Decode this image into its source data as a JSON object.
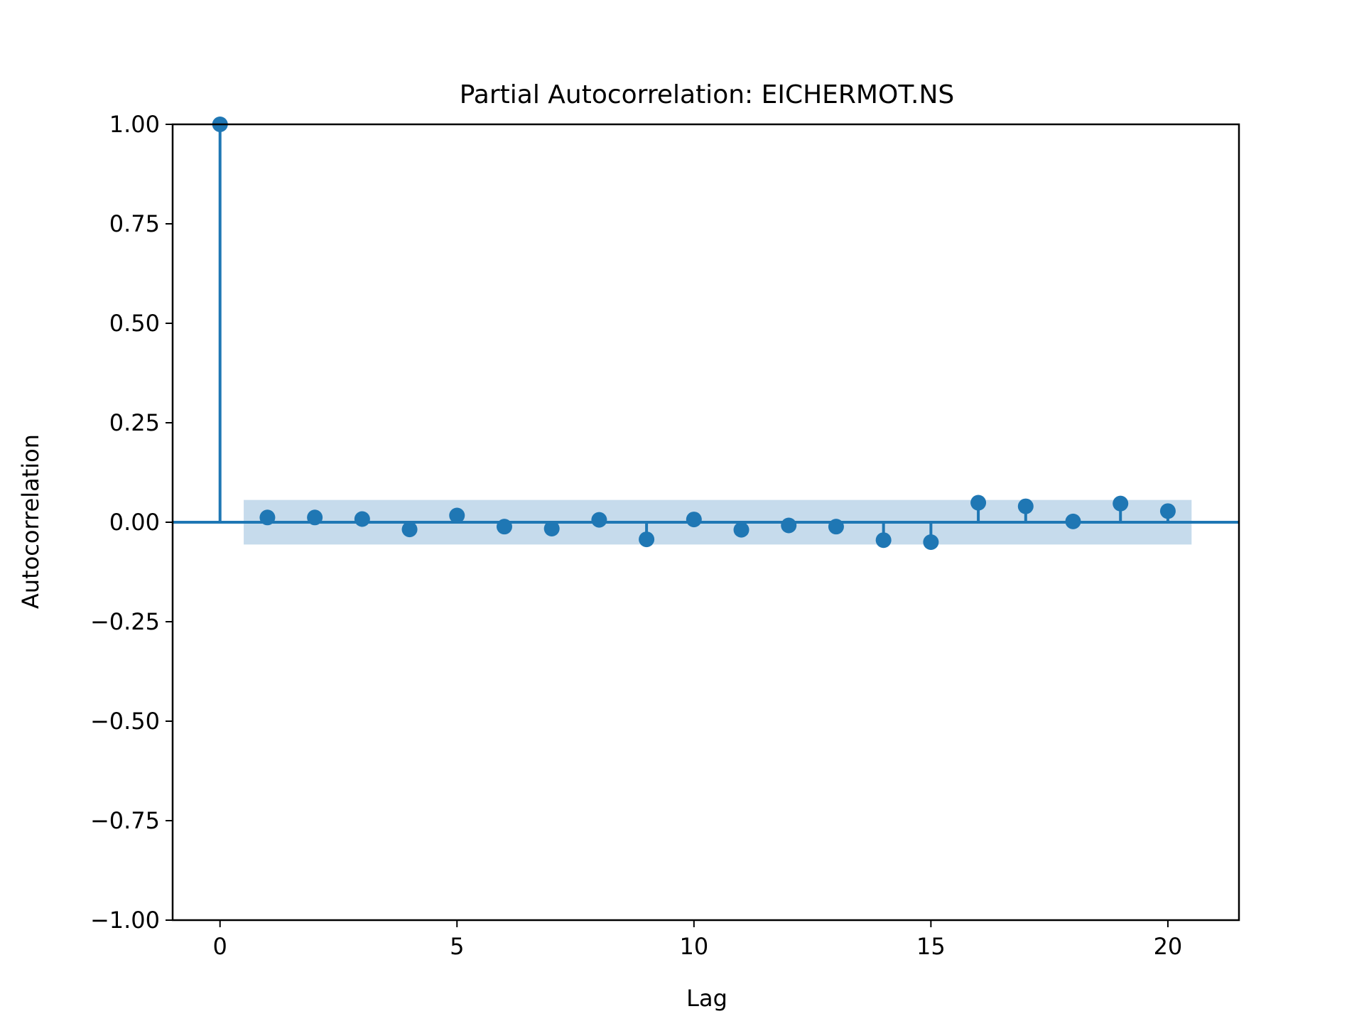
{
  "chart_data": {
    "type": "scatter",
    "subtype": "stem",
    "title": "Partial Autocorrelation: EICHERMOT.NS",
    "xlabel": "Lag",
    "ylabel": "Autocorrelation",
    "xlim": [
      -1,
      21.5
    ],
    "ylim": [
      -1.0,
      1.0
    ],
    "xticks": [
      0,
      5,
      10,
      15,
      20
    ],
    "xtick_labels": [
      "0",
      "5",
      "10",
      "15",
      "20"
    ],
    "yticks": [
      1.0,
      0.75,
      0.5,
      0.25,
      0.0,
      -0.25,
      -0.5,
      -0.75,
      -1.0
    ],
    "ytick_labels": [
      "1.00",
      "0.75",
      "0.50",
      "0.25",
      "0.00",
      "−0.25",
      "−0.50",
      "−0.75",
      "−1.00"
    ],
    "grid": false,
    "series": [
      {
        "x": [
          0,
          1,
          2,
          3,
          4,
          5,
          6,
          7,
          8,
          9,
          10,
          11,
          12,
          13,
          14,
          15,
          16,
          17,
          18,
          19,
          20
        ],
        "values": [
          1.0,
          0.012,
          0.012,
          0.008,
          -0.018,
          0.017,
          -0.011,
          -0.016,
          0.006,
          -0.043,
          0.007,
          -0.019,
          -0.008,
          -0.011,
          -0.045,
          -0.05,
          0.049,
          0.04,
          0.002,
          0.047,
          0.028
        ]
      }
    ],
    "confidence_band": {
      "x_range": [
        0.5,
        20.5
      ],
      "upper": 0.056,
      "lower": -0.056
    },
    "colors": {
      "series": "#1f77b4",
      "band": "#c6dbec"
    }
  }
}
